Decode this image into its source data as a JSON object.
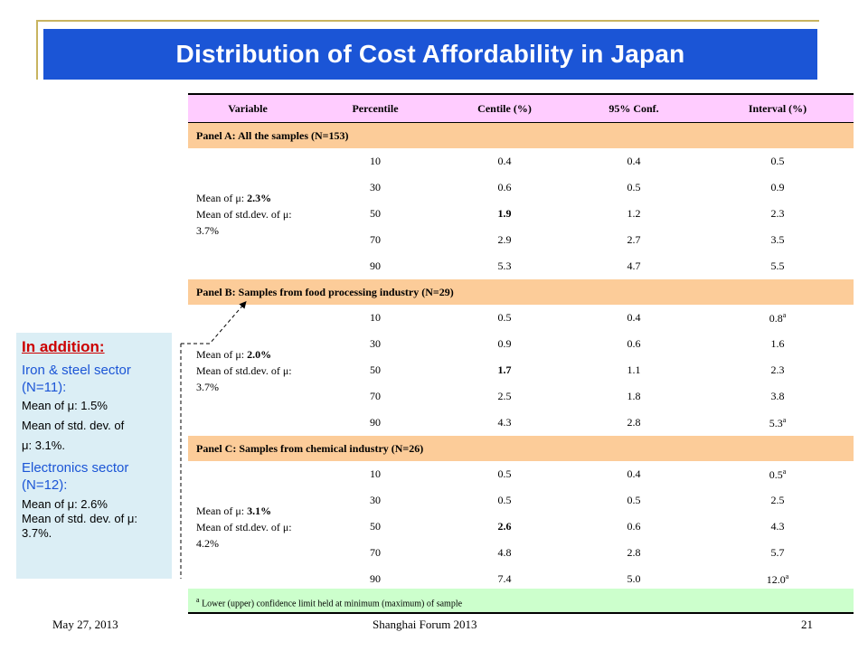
{
  "slide": {
    "title": "Distribution of Cost Affordability in Japan",
    "footer_date": "May 27, 2013",
    "footer_event": "Shanghai Forum 2013",
    "page_number": "21"
  },
  "table": {
    "headers": [
      "Variable",
      "Percentile",
      "Centile (%)",
      "95% Conf.",
      "Interval (%)"
    ],
    "panels": [
      {
        "label": "Panel A: All the samples (N=153)",
        "mean_prefix": "Mean of μ: ",
        "mean_value": "2.3%",
        "std_text": "Mean of std.dev. of μ: 3.7%",
        "rows": [
          {
            "p": "10",
            "c": "0.4",
            "lo": "0.4",
            "hi": "0.5",
            "hi_sup": ""
          },
          {
            "p": "30",
            "c": "0.6",
            "lo": "0.5",
            "hi": "0.9",
            "hi_sup": ""
          },
          {
            "p": "50",
            "c": "1.9",
            "lo": "1.2",
            "hi": "2.3",
            "hi_sup": ""
          },
          {
            "p": "70",
            "c": "2.9",
            "lo": "2.7",
            "hi": "3.5",
            "hi_sup": ""
          },
          {
            "p": "90",
            "c": "5.3",
            "lo": "4.7",
            "hi": "5.5",
            "hi_sup": ""
          }
        ]
      },
      {
        "label": "Panel B: Samples from food processing industry (N=29)",
        "mean_prefix": "Mean of μ: ",
        "mean_value": "2.0%",
        "std_text": "Mean of std.dev. of μ: 3.7%",
        "rows": [
          {
            "p": "10",
            "c": "0.5",
            "lo": "0.4",
            "hi": "0.8",
            "hi_sup": "a"
          },
          {
            "p": "30",
            "c": "0.9",
            "lo": "0.6",
            "hi": "1.6",
            "hi_sup": ""
          },
          {
            "p": "50",
            "c": "1.7",
            "lo": "1.1",
            "hi": "2.3",
            "hi_sup": ""
          },
          {
            "p": "70",
            "c": "2.5",
            "lo": "1.8",
            "hi": "3.8",
            "hi_sup": ""
          },
          {
            "p": "90",
            "c": "4.3",
            "lo": "2.8",
            "hi": "5.3",
            "hi_sup": "a"
          }
        ]
      },
      {
        "label": "Panel C: Samples from chemical industry (N=26)",
        "mean_prefix": "Mean of μ: ",
        "mean_value": "3.1%",
        "std_text": "Mean of std.dev. of μ: 4.2%",
        "rows": [
          {
            "p": "10",
            "c": "0.5",
            "lo": "0.4",
            "hi": "0.5",
            "hi_sup": "a"
          },
          {
            "p": "30",
            "c": "0.5",
            "lo": "0.5",
            "hi": "2.5",
            "hi_sup": ""
          },
          {
            "p": "50",
            "c": "2.6",
            "lo": "0.6",
            "hi": "4.3",
            "hi_sup": ""
          },
          {
            "p": "70",
            "c": "4.8",
            "lo": "2.8",
            "hi": "5.7",
            "hi_sup": ""
          },
          {
            "p": "90",
            "c": "7.4",
            "lo": "5.0",
            "hi": "12.0",
            "hi_sup": "a"
          }
        ]
      }
    ],
    "footnote_sup": "a",
    "footnote_text": "Lower (upper) confidence limit held at minimum (maximum) of sample"
  },
  "sidebox": {
    "title": "In addition:",
    "iron_sector": "Iron & steel sector (N=11):",
    "iron_mean": "Mean of μ: 1.5%",
    "iron_std_1": "Mean of std. dev. of",
    "iron_std_2": "μ: 3.1%.",
    "elec_sector": "Electronics sector (N=12):",
    "elec_mean": "Mean of μ: 2.6%",
    "elec_std": "Mean of std. dev. of μ: 3.7%."
  },
  "colors": {
    "title_bar": "#1b55d6",
    "header_row": "#ffccff",
    "panel_row": "#fccc99",
    "footnote_bg": "#ccffcc",
    "sidebox_bg": "#dbeef5",
    "sidebox_title": "#cc0000",
    "sector_text": "#1b55d6"
  }
}
